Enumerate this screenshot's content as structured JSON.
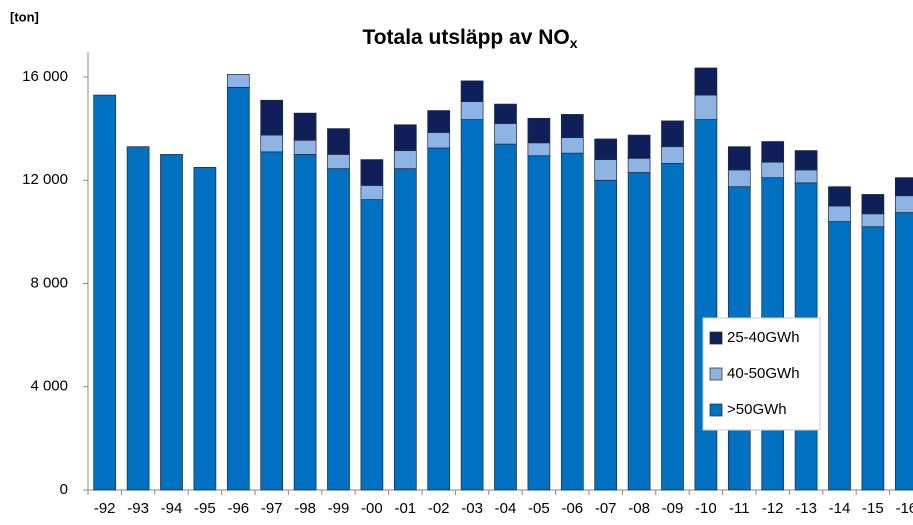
{
  "chart_data": {
    "type": "stacked_bar",
    "title": "Totala utsläpp av NO",
    "title_subscript": "x",
    "y_label": "[ton]",
    "categories": [
      "-92",
      "-93",
      "-94",
      "-95",
      "-96",
      "-97",
      "-98",
      "-99",
      "-00",
      "-01",
      "-02",
      "-03",
      "-04",
      "-05",
      "-06",
      "-07",
      "-08",
      "-09",
      "-10",
      "-11",
      "-12",
      "-13",
      "-14",
      "-15",
      "-16"
    ],
    "series": [
      {
        "name": ">50GWh",
        "color": "#0070c0",
        "values": [
          15300,
          13300,
          13000,
          12500,
          15600,
          13100,
          13000,
          12450,
          11250,
          12450,
          13250,
          14350,
          13400,
          12950,
          13050,
          12000,
          12300,
          12650,
          14350,
          11750,
          12100,
          11900,
          10400,
          10200,
          10750
        ]
      },
      {
        "name": "40-50GWh",
        "color": "#8db4e2",
        "values": [
          0,
          0,
          0,
          0,
          500,
          650,
          550,
          550,
          550,
          700,
          600,
          700,
          800,
          500,
          600,
          800,
          550,
          650,
          950,
          650,
          600,
          500,
          600,
          500,
          650
        ]
      },
      {
        "name": "25-40GWh",
        "color": "#0f1f5a",
        "values": [
          0,
          0,
          0,
          0,
          0,
          1350,
          1050,
          1000,
          1000,
          1000,
          850,
          800,
          750,
          950,
          900,
          800,
          900,
          1000,
          1050,
          900,
          800,
          750,
          750,
          750,
          700
        ]
      }
    ],
    "ylim": [
      0,
      16000
    ],
    "yticks": [
      0,
      {
        "value": 4000,
        "label": "4 000"
      },
      {
        "value": 8000,
        "label": "8 000"
      },
      {
        "value": 12000,
        "label": "12 000"
      },
      {
        "value": 16000,
        "label": "16 000"
      }
    ],
    "grid": false,
    "legend": "lower right"
  }
}
